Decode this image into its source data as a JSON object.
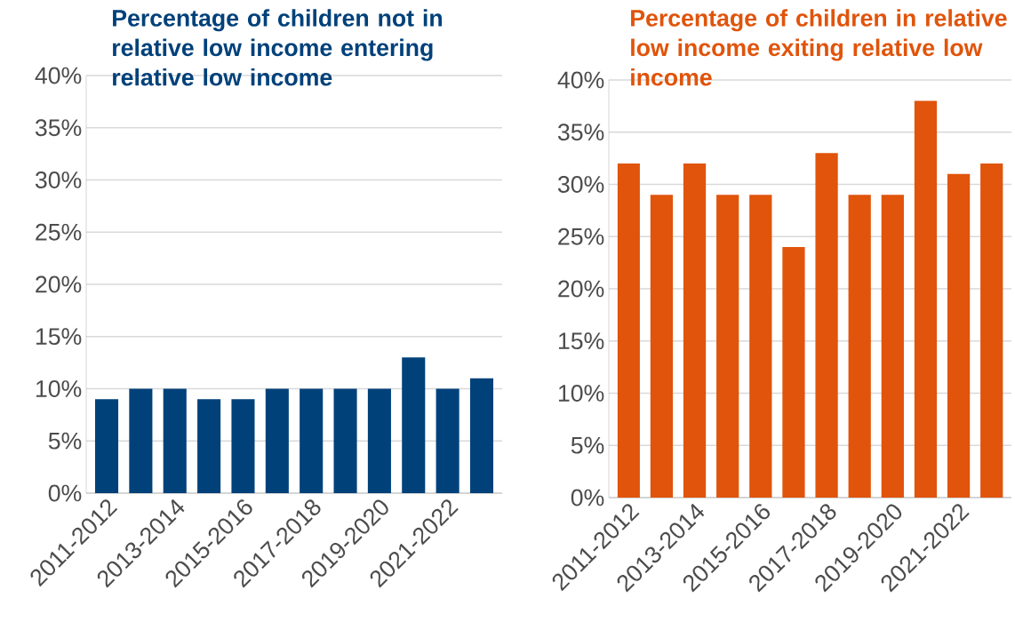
{
  "chart_data": [
    {
      "type": "bar",
      "title": "Percentage of children not in relative low income entering relative low income",
      "categories": [
        "2011-2012",
        null,
        "2013-2014",
        null,
        "2015-2016",
        null,
        "2017-2018",
        null,
        "2019-2020",
        null,
        "2021-2022",
        null
      ],
      "values": [
        9,
        10,
        10,
        9,
        9,
        10,
        10,
        10,
        10,
        13,
        10,
        11
      ],
      "color": "#00417a",
      "ylim": [
        0,
        40
      ],
      "yticks": [
        {
          "value": 0,
          "label": "0%"
        },
        {
          "value": 5,
          "label": "5%"
        },
        {
          "value": 10,
          "label": "10%"
        },
        {
          "value": 15,
          "label": "15%"
        },
        {
          "value": 20,
          "label": "20%"
        },
        {
          "value": 25,
          "label": "25%"
        },
        {
          "value": 30,
          "label": "30%"
        },
        {
          "value": 35,
          "label": "35%"
        },
        {
          "value": 40,
          "label": "40%"
        }
      ],
      "grid": "y"
    },
    {
      "type": "bar",
      "title": "Percentage of children in relative low income exiting relative low income",
      "categories": [
        "2011-2012",
        null,
        "2013-2014",
        null,
        "2015-2016",
        null,
        "2017-2018",
        null,
        "2019-2020",
        null,
        "2021-2022",
        null
      ],
      "values": [
        32,
        29,
        32,
        29,
        29,
        24,
        33,
        29,
        29,
        38,
        31,
        32
      ],
      "color": "#e0540b",
      "ylim": [
        0,
        40
      ],
      "yticks": [
        {
          "value": 0,
          "label": "0%"
        },
        {
          "value": 5,
          "label": "5%"
        },
        {
          "value": 10,
          "label": "10%"
        },
        {
          "value": 15,
          "label": "15%"
        },
        {
          "value": 20,
          "label": "20%"
        },
        {
          "value": 25,
          "label": "25%"
        },
        {
          "value": 30,
          "label": "30%"
        },
        {
          "value": 35,
          "label": "35%"
        },
        {
          "value": 40,
          "label": "40%"
        }
      ],
      "grid": "y"
    }
  ]
}
